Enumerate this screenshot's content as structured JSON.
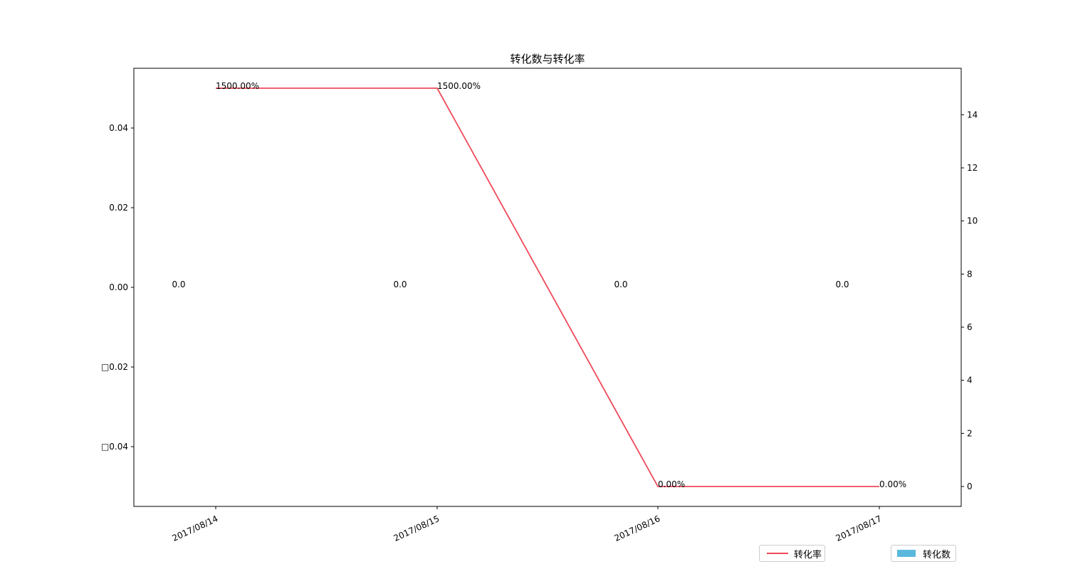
{
  "chart_data": {
    "type": "bar+line",
    "title": "转化数与转化率",
    "categories": [
      "2017/08/14",
      "2017/08/15",
      "2017/08/16",
      "2017/08/17"
    ],
    "series": [
      {
        "name": "转化数",
        "type": "bar",
        "axis": "left",
        "values": [
          0.0,
          0.0,
          0.0,
          0.0
        ],
        "labels": [
          "0.0",
          "0.0",
          "0.0",
          "0.0"
        ],
        "color": "#5bb8dd"
      },
      {
        "name": "转化率",
        "type": "line",
        "axis": "right",
        "values": [
          15,
          15,
          0,
          0
        ],
        "labels": [
          "1500.00%",
          "1500.00%",
          "0.00%",
          "0.00%"
        ],
        "color": "#f04a5a"
      }
    ],
    "y_left": {
      "ylim": [
        -0.055,
        0.055
      ],
      "ticks": [
        0.04,
        0.02,
        0.0,
        -0.02,
        -0.04
      ],
      "tick_labels": [
        "0.04",
        "0.02",
        "0.00",
        "□0.02",
        "□0.04"
      ]
    },
    "y_right": {
      "ylim": [
        -0.75,
        15.75
      ],
      "ticks": [
        0,
        2,
        4,
        6,
        8,
        10,
        12,
        14
      ],
      "tick_labels": [
        "0",
        "2",
        "4",
        "6",
        "8",
        "10",
        "12",
        "14"
      ]
    },
    "x_tick_rotation": 25,
    "legend": [
      {
        "name": "转化率",
        "kind": "line"
      },
      {
        "name": "转化数",
        "kind": "bar"
      }
    ],
    "legend_placement": "bottom-right",
    "grid": false
  }
}
